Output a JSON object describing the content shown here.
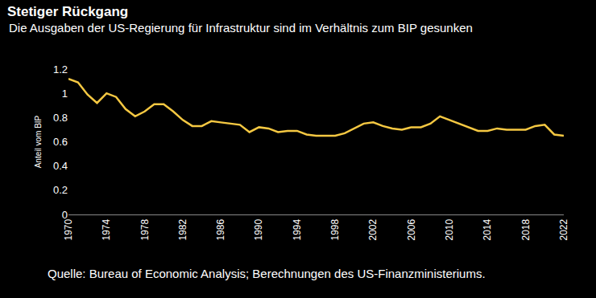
{
  "chart_data": {
    "type": "line",
    "title": "Stetiger Rückgang",
    "subtitle": "Die Ausgaben der US-Regierung für Infrastruktur sind im Verhältnis zum BIP gesunken",
    "y_label": "Anteil vom BIP",
    "source": "Quelle: Bureau of Economic Analysis; Berechnungen des US-Finanzministeriums.",
    "x": [
      1970,
      1971,
      1972,
      1973,
      1974,
      1975,
      1976,
      1977,
      1978,
      1979,
      1980,
      1981,
      1982,
      1983,
      1984,
      1985,
      1986,
      1987,
      1988,
      1989,
      1990,
      1991,
      1992,
      1993,
      1994,
      1995,
      1996,
      1997,
      1998,
      1999,
      2000,
      2001,
      2002,
      2003,
      2004,
      2005,
      2006,
      2007,
      2008,
      2009,
      2010,
      2011,
      2012,
      2013,
      2014,
      2015,
      2016,
      2017,
      2018,
      2019,
      2020,
      2021,
      2022
    ],
    "values": [
      1.12,
      1.09,
      0.99,
      0.92,
      1.0,
      0.97,
      0.87,
      0.81,
      0.85,
      0.91,
      0.91,
      0.85,
      0.78,
      0.73,
      0.73,
      0.77,
      0.76,
      0.75,
      0.74,
      0.68,
      0.72,
      0.71,
      0.68,
      0.69,
      0.69,
      0.66,
      0.65,
      0.65,
      0.65,
      0.67,
      0.71,
      0.75,
      0.76,
      0.73,
      0.71,
      0.7,
      0.72,
      0.72,
      0.75,
      0.81,
      0.78,
      0.75,
      0.72,
      0.69,
      0.69,
      0.71,
      0.7,
      0.7,
      0.7,
      0.73,
      0.74,
      0.66,
      0.65
    ],
    "color": "#f5c842",
    "xlim": [
      1970,
      2022
    ],
    "xticks": [
      1970,
      1974,
      1978,
      1982,
      1986,
      1990,
      1994,
      1998,
      2002,
      2006,
      2010,
      2014,
      2018,
      2022
    ],
    "ylim": [
      0,
      1.2
    ],
    "yticks": [
      0,
      0.2,
      0.4,
      0.6,
      0.8,
      1,
      1.2
    ],
    "grid": false
  }
}
